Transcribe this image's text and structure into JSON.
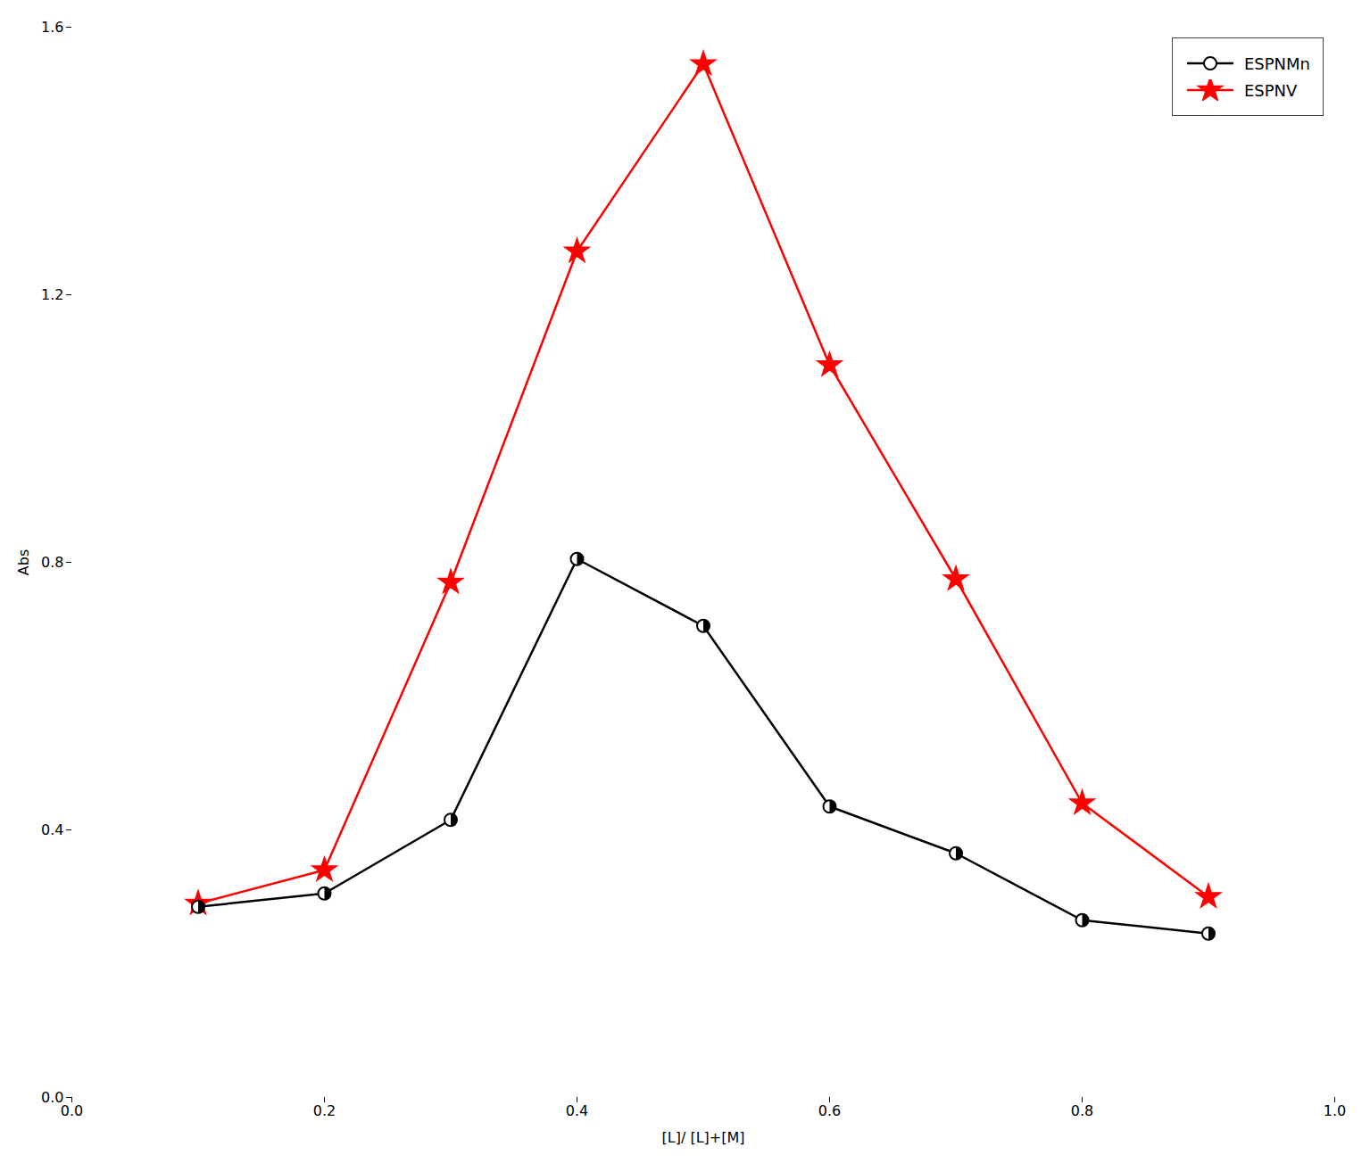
{
  "chart_data": {
    "type": "line",
    "xlabel": "[L]/ [L]+[M]",
    "ylabel": "Abs",
    "x": [
      0.1,
      0.2,
      0.3,
      0.4,
      0.5,
      0.6,
      0.7,
      0.8,
      0.9
    ],
    "series": [
      {
        "name": "ESPNMn",
        "color": "#000000",
        "marker": "circle",
        "line_style": "solid",
        "values": [
          0.285,
          0.305,
          0.415,
          0.805,
          0.705,
          0.435,
          0.365,
          0.265,
          0.245
        ]
      },
      {
        "name": "ESPNV",
        "color": "#ff0000",
        "marker": "star",
        "line_style": "solid",
        "values": [
          0.29,
          0.34,
          0.77,
          1.265,
          1.545,
          1.095,
          0.775,
          0.44,
          0.3
        ]
      }
    ],
    "xlim": [
      0.0,
      1.0
    ],
    "ylim": [
      0.0,
      1.6
    ],
    "xticks": [
      {
        "value": 0.0,
        "label": "0.0"
      },
      0.2,
      0.4,
      0.6,
      0.8,
      {
        "value": 1.0,
        "label": "1.0"
      }
    ],
    "yticks": [
      {
        "value": 0.0,
        "label": "0.0"
      },
      0.4,
      0.8,
      1.2,
      1.6
    ],
    "grid": false,
    "legend": "upper right"
  }
}
